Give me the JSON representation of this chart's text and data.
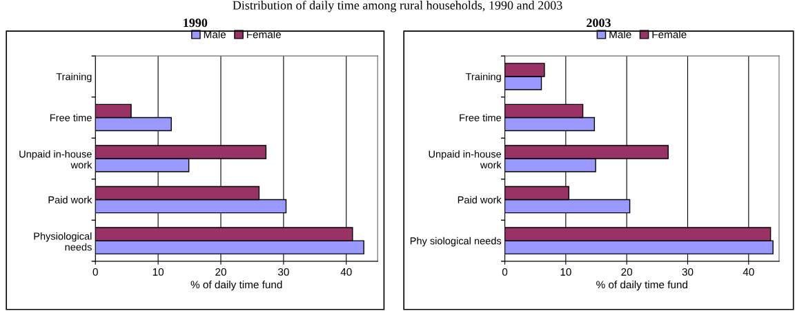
{
  "chart_data": [
    {
      "type": "bar",
      "orientation": "horizontal",
      "title": "1990",
      "annotations": [
        "Distribution of daily time among rural households, 1990 and 2003"
      ],
      "xlabel": "% of daily time fund",
      "categories": [
        "Training",
        "Free time",
        "Unpaid in-house\nwork",
        "Paid work",
        "Physiological\nneeds"
      ],
      "series": [
        {
          "name": "Male",
          "color": "#9999ff",
          "values": [
            null,
            12.1,
            14.9,
            30.4,
            42.8
          ]
        },
        {
          "name": "Female",
          "color": "#993366",
          "values": [
            null,
            5.7,
            27.2,
            26.1,
            41.0
          ]
        }
      ],
      "xlim": [
        0,
        45
      ],
      "xticks": [
        0,
        10,
        20,
        30,
        40
      ],
      "grid": "x",
      "legend": "top"
    },
    {
      "type": "bar",
      "orientation": "horizontal",
      "title": "2003",
      "xlabel": "% of daily time fund",
      "categories": [
        "Training",
        "Free time",
        "Unpaid in-house\nwork",
        "Paid work",
        "Phy siological needs"
      ],
      "series": [
        {
          "name": "Male",
          "color": "#9999ff",
          "values": [
            6.0,
            14.7,
            14.9,
            20.5,
            44.0
          ]
        },
        {
          "name": "Female",
          "color": "#993366",
          "values": [
            6.5,
            12.8,
            26.8,
            10.5,
            43.6
          ]
        }
      ],
      "xlim": [
        0,
        45
      ],
      "xticks": [
        0,
        10,
        20,
        30,
        40
      ],
      "grid": "x",
      "legend": "top"
    }
  ]
}
